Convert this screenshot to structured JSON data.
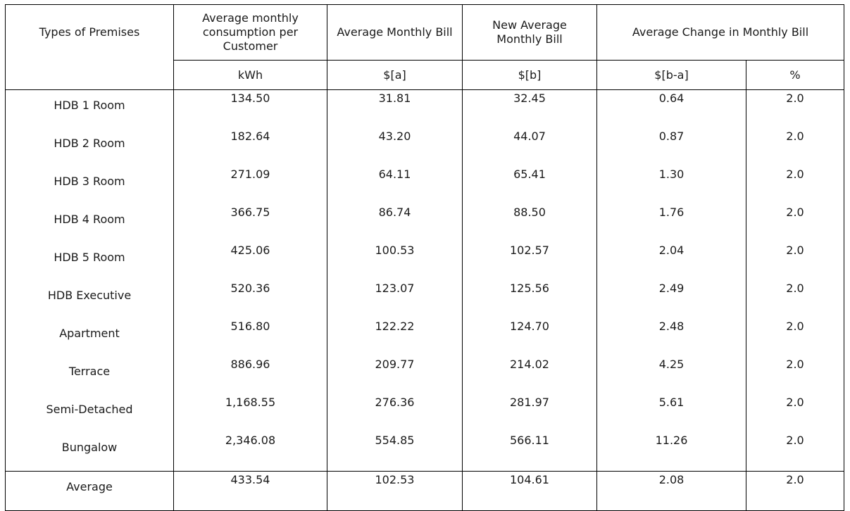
{
  "table": {
    "headers": {
      "premises": "Types of Premises",
      "consumption": "Average monthly consumption per Customer",
      "bill": "Average Monthly Bill",
      "new_bill": "New Average Monthly Bill",
      "change": "Average Change in Monthly Bill"
    },
    "units": {
      "consumption": "kWh",
      "bill": "$[a]",
      "new_bill": "$[b]",
      "change_abs": "$[b-a]",
      "change_pct": "%"
    },
    "rows": [
      {
        "premises": "HDB 1 Room",
        "kwh": "134.50",
        "bill": "31.81",
        "new_bill": "32.45",
        "change_abs": "0.64",
        "change_pct": "2.0"
      },
      {
        "premises": "HDB 2 Room",
        "kwh": "182.64",
        "bill": "43.20",
        "new_bill": "44.07",
        "change_abs": "0.87",
        "change_pct": "2.0"
      },
      {
        "premises": "HDB 3 Room",
        "kwh": "271.09",
        "bill": "64.11",
        "new_bill": "65.41",
        "change_abs": "1.30",
        "change_pct": "2.0"
      },
      {
        "premises": "HDB 4 Room",
        "kwh": "366.75",
        "bill": "86.74",
        "new_bill": "88.50",
        "change_abs": "1.76",
        "change_pct": "2.0"
      },
      {
        "premises": "HDB 5 Room",
        "kwh": "425.06",
        "bill": "100.53",
        "new_bill": "102.57",
        "change_abs": "2.04",
        "change_pct": "2.0"
      },
      {
        "premises": "HDB Executive",
        "kwh": "520.36",
        "bill": "123.07",
        "new_bill": "125.56",
        "change_abs": "2.49",
        "change_pct": "2.0"
      },
      {
        "premises": "Apartment",
        "kwh": "516.80",
        "bill": "122.22",
        "new_bill": "124.70",
        "change_abs": "2.48",
        "change_pct": "2.0"
      },
      {
        "premises": "Terrace",
        "kwh": "886.96",
        "bill": "209.77",
        "new_bill": "214.02",
        "change_abs": "4.25",
        "change_pct": "2.0"
      },
      {
        "premises": "Semi-Detached",
        "kwh": "1,168.55",
        "bill": "276.36",
        "new_bill": "281.97",
        "change_abs": "5.61",
        "change_pct": "2.0"
      },
      {
        "premises": "Bungalow",
        "kwh": "2,346.08",
        "bill": "554.85",
        "new_bill": "566.11",
        "change_abs": "11.26",
        "change_pct": "2.0"
      }
    ],
    "average": {
      "premises": "Average",
      "kwh": "433.54",
      "bill": "102.53",
      "new_bill": "104.61",
      "change_abs": "2.08",
      "change_pct": "2.0"
    }
  }
}
